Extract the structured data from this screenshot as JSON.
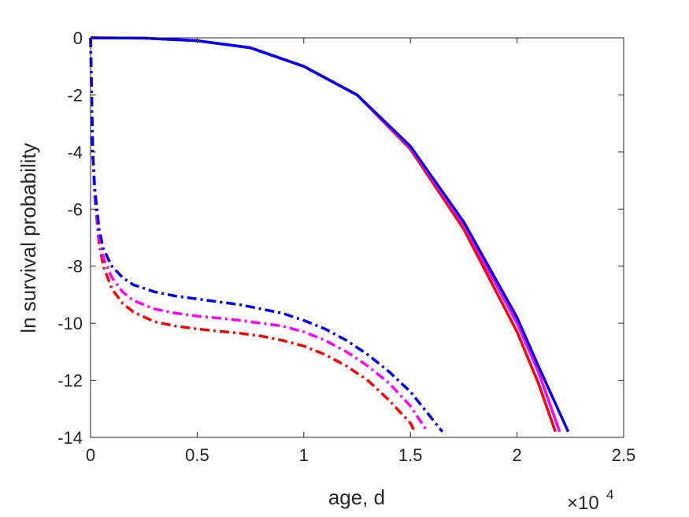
{
  "chart_data": {
    "type": "line",
    "xlabel": "age, d",
    "ylabel": "ln survival probability",
    "x_exponent_label": "×10",
    "x_exponent_power": "4",
    "xlim": [
      0,
      25000
    ],
    "ylim": [
      -14,
      0
    ],
    "xticks": [
      0,
      5000,
      10000,
      15000,
      20000,
      25000
    ],
    "xtick_labels": [
      "0",
      "0.5",
      "1",
      "1.5",
      "2",
      "2.5"
    ],
    "yticks": [
      0,
      -2,
      -4,
      -6,
      -8,
      -10,
      -12,
      -14
    ],
    "ytick_labels": [
      "0",
      "-2",
      "-4",
      "-6",
      "-8",
      "-10",
      "-12",
      "-14"
    ],
    "box": true,
    "grid": false,
    "series": [
      {
        "color": "#ff0000",
        "style": "solid",
        "x": [
          0,
          2500,
          5000,
          7500,
          10000,
          12500,
          15000,
          17500,
          20000,
          21000,
          21800
        ],
        "y": [
          0,
          -0.01,
          -0.1,
          -0.35,
          -1.0,
          -2.0,
          -3.9,
          -6.7,
          -10.3,
          -12.1,
          -13.8
        ]
      },
      {
        "color": "#ff00ff",
        "style": "solid",
        "x": [
          0,
          2500,
          5000,
          7500,
          10000,
          12500,
          15000,
          17500,
          20000,
          21000,
          22000
        ],
        "y": [
          0,
          -0.01,
          -0.1,
          -0.35,
          -1.0,
          -2.0,
          -3.85,
          -6.55,
          -10.0,
          -11.7,
          -13.8
        ]
      },
      {
        "color": "#0000ff",
        "style": "solid",
        "x": [
          0,
          2500,
          5000,
          7500,
          10000,
          12500,
          15000,
          17500,
          20000,
          21000,
          22400
        ],
        "y": [
          0,
          -0.01,
          -0.1,
          -0.35,
          -1.0,
          -2.0,
          -3.8,
          -6.45,
          -9.8,
          -11.5,
          -13.8
        ]
      },
      {
        "color": "#ff0000",
        "style": "dashdot",
        "x": [
          0,
          100,
          200,
          400,
          600,
          1000,
          1500,
          2000,
          3000,
          4000,
          5000,
          6000,
          7000,
          8000,
          9000,
          10000,
          11000,
          12000,
          13000,
          14000,
          15000,
          15200
        ],
        "y": [
          0,
          -4.0,
          -5.6,
          -7.2,
          -8.0,
          -8.8,
          -9.3,
          -9.6,
          -9.95,
          -10.1,
          -10.2,
          -10.28,
          -10.35,
          -10.45,
          -10.6,
          -10.8,
          -11.1,
          -11.5,
          -12.0,
          -12.7,
          -13.5,
          -13.8
        ]
      },
      {
        "color": "#ff00ff",
        "style": "dashdot",
        "x": [
          0,
          100,
          200,
          400,
          600,
          1000,
          1500,
          2000,
          3000,
          4000,
          5000,
          6000,
          7000,
          8000,
          9000,
          10000,
          11000,
          12000,
          13000,
          14000,
          15000,
          15800
        ],
        "y": [
          0,
          -4.0,
          -5.5,
          -7.0,
          -7.7,
          -8.4,
          -8.9,
          -9.2,
          -9.5,
          -9.65,
          -9.75,
          -9.82,
          -9.9,
          -10.0,
          -10.1,
          -10.3,
          -10.6,
          -11.0,
          -11.5,
          -12.1,
          -12.9,
          -13.8
        ]
      },
      {
        "color": "#0000ff",
        "style": "dashdot",
        "x": [
          0,
          100,
          200,
          400,
          600,
          1000,
          1500,
          2000,
          3000,
          4000,
          5000,
          6000,
          7000,
          8000,
          9000,
          10000,
          11000,
          12000,
          13000,
          14000,
          15000,
          16500
        ],
        "y": [
          0,
          -4.0,
          -5.3,
          -6.7,
          -7.4,
          -8.0,
          -8.4,
          -8.65,
          -8.9,
          -9.05,
          -9.15,
          -9.25,
          -9.35,
          -9.5,
          -9.65,
          -9.9,
          -10.2,
          -10.6,
          -11.1,
          -11.7,
          -12.4,
          -13.8
        ]
      }
    ]
  }
}
